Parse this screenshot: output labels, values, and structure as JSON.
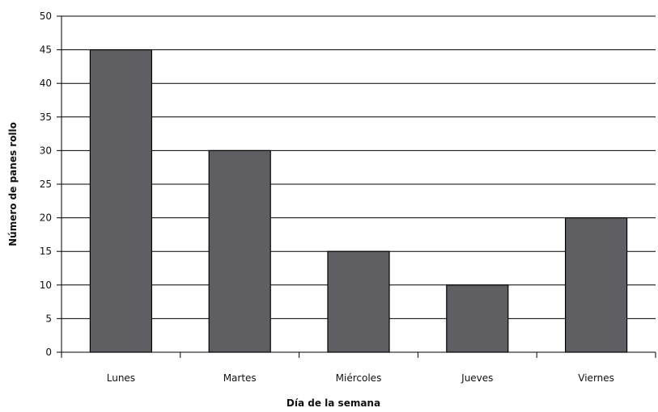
{
  "chart_data": {
    "type": "bar",
    "title": "",
    "xlabel": "Día de la semana",
    "ylabel": "Número de panes rollo",
    "categories": [
      "Lunes",
      "Martes",
      "Miércoles",
      "Jueves",
      "Viernes"
    ],
    "values": [
      45,
      30,
      15,
      10,
      20
    ],
    "ylim": [
      0,
      50
    ],
    "yticks": [
      "0",
      "5",
      "10",
      "15",
      "20",
      "25",
      "30",
      "35",
      "40",
      "45",
      "50"
    ],
    "grid": true,
    "legend": "none",
    "bar_color": "#5f5f63"
  }
}
